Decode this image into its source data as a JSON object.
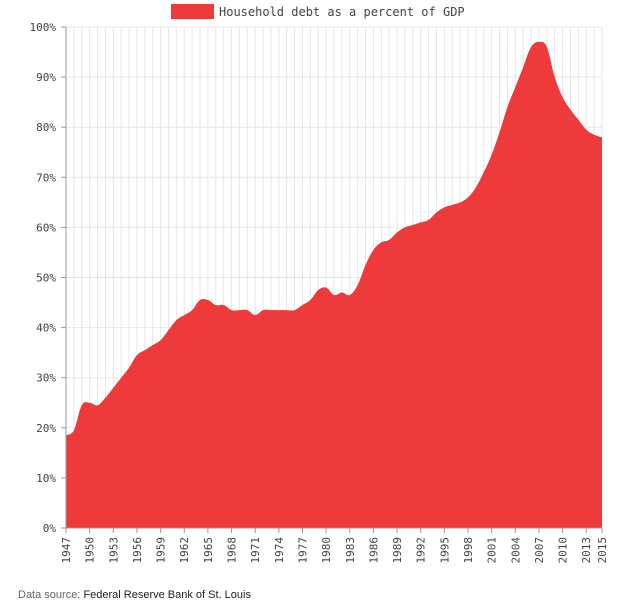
{
  "chart_data": {
    "type": "area",
    "title": "",
    "xlabel": "",
    "ylabel": "",
    "legend": {
      "label": "Household debt as a percent of GDP",
      "position": "top-center"
    },
    "colors": {
      "series": "#ee3a3a",
      "grid": "#e6e6e6",
      "axis": "#999999",
      "text": "#444444"
    },
    "xlim": [
      1947,
      2015
    ],
    "ylim": [
      0,
      100
    ],
    "x_ticks": [
      "1947",
      "1950",
      "1953",
      "1956",
      "1959",
      "1962",
      "1965",
      "1968",
      "1971",
      "1974",
      "1977",
      "1980",
      "1983",
      "1986",
      "1989",
      "1992",
      "1995",
      "1998",
      "2001",
      "2004",
      "2007",
      "2010",
      "2013",
      "2015"
    ],
    "y_ticks": [
      "0%",
      "10%",
      "20%",
      "30%",
      "40%",
      "50%",
      "60%",
      "70%",
      "80%",
      "90%",
      "100%"
    ],
    "grid": true,
    "series": [
      {
        "name": "Household debt as a percent of GDP",
        "x": [
          1947,
          1948,
          1949,
          1950,
          1951,
          1952,
          1953,
          1954,
          1955,
          1956,
          1957,
          1958,
          1959,
          1960,
          1961,
          1962,
          1963,
          1964,
          1965,
          1966,
          1967,
          1968,
          1969,
          1970,
          1971,
          1972,
          1973,
          1974,
          1975,
          1976,
          1977,
          1978,
          1979,
          1980,
          1981,
          1982,
          1983,
          1984,
          1985,
          1986,
          1987,
          1988,
          1989,
          1990,
          1991,
          1992,
          1993,
          1994,
          1995,
          1996,
          1997,
          1998,
          1999,
          2000,
          2001,
          2002,
          2003,
          2004,
          2005,
          2006,
          2007,
          2008,
          2009,
          2010,
          2011,
          2012,
          2013,
          2014,
          2015
        ],
        "values": [
          18.5,
          19.5,
          24.5,
          25,
          24.5,
          26,
          28,
          30,
          32,
          34.5,
          35.5,
          36.5,
          37.5,
          39.5,
          41.5,
          42.5,
          43.5,
          45.5,
          45.5,
          44.5,
          44.5,
          43.5,
          43.5,
          43.5,
          42.5,
          43.5,
          43.5,
          43.5,
          43.5,
          43.5,
          44.5,
          45.5,
          47.5,
          48,
          46.5,
          47,
          46.5,
          48.5,
          52.5,
          55.5,
          57,
          57.5,
          59,
          60,
          60.5,
          61,
          61.5,
          63,
          64,
          64.5,
          65,
          66,
          68,
          71,
          74.5,
          79,
          84,
          88,
          92,
          96,
          97,
          96,
          90,
          86,
          83.5,
          81.5,
          79.5,
          78.5,
          78
        ]
      }
    ]
  },
  "footer": {
    "source_label": "Data source:",
    "source_name": "Federal Reserve Bank of St. Louis"
  }
}
